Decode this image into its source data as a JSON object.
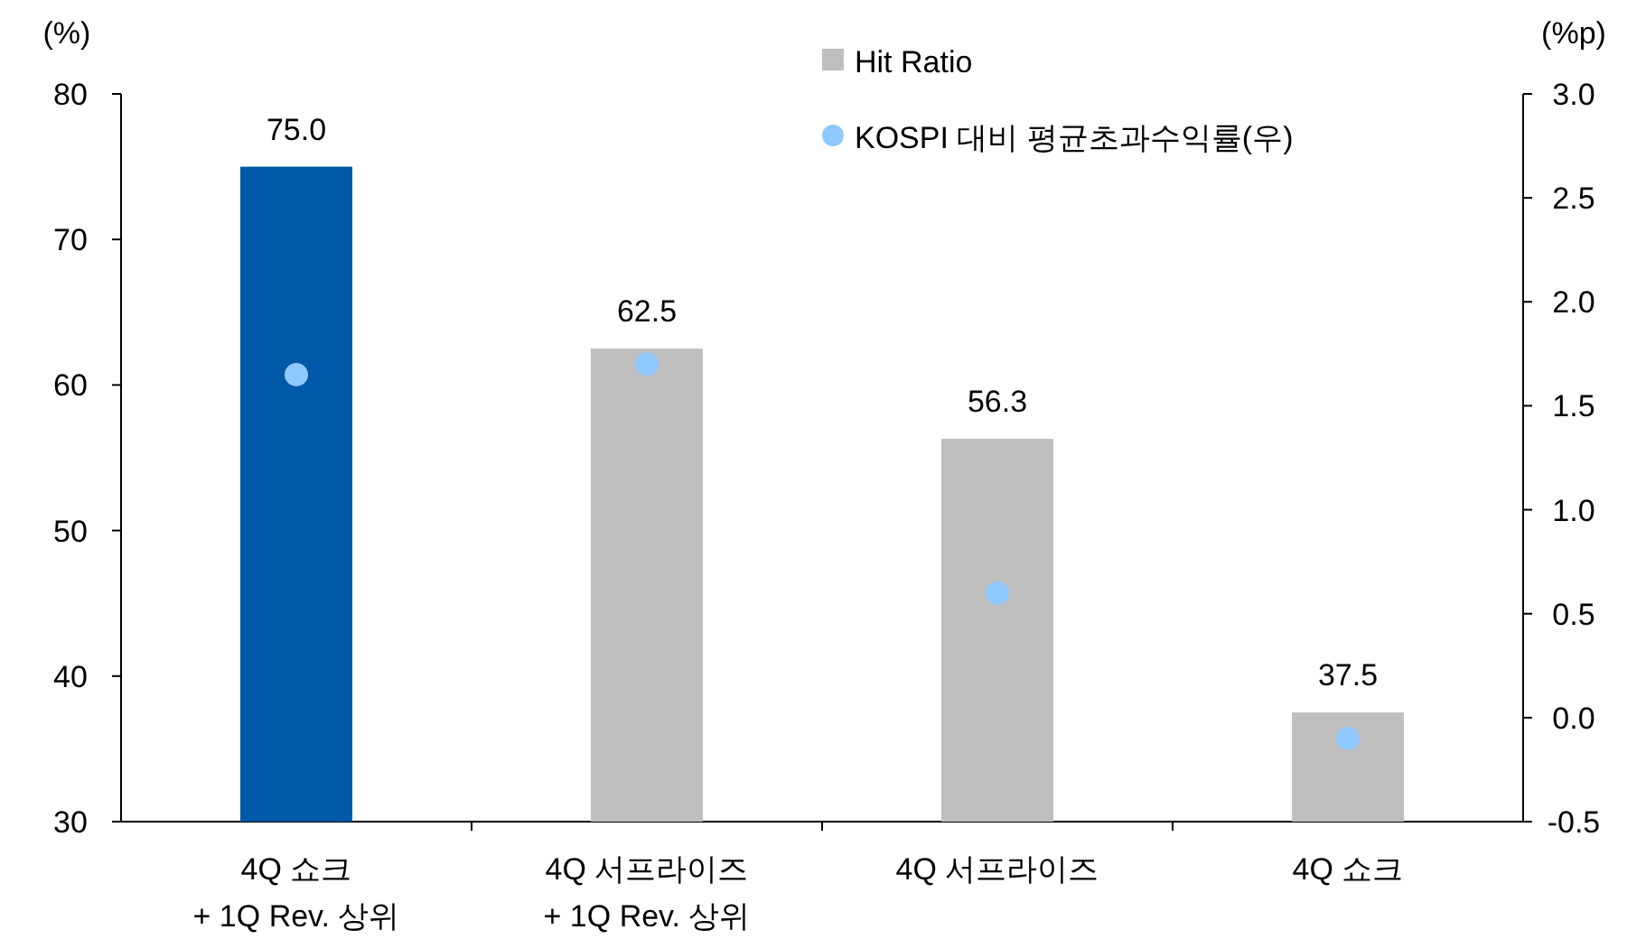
{
  "chart_data": {
    "type": "bar",
    "ylabel": "(%)",
    "y2label": "(%p)",
    "categories": [
      "4Q 쇼크\n+ 1Q Rev. 상위",
      "4Q 서프라이즈\n+ 1Q Rev. 상위",
      "4Q 서프라이즈",
      "4Q 쇼크"
    ],
    "series": [
      {
        "name": "Hit Ratio",
        "color": "#bfbfbf",
        "colors": [
          "#0058a8",
          "#bfbfbf",
          "#bfbfbf",
          "#bfbfbf"
        ],
        "values": [
          75.0,
          62.5,
          56.3,
          37.5
        ],
        "value_labels": [
          "75.0",
          "62.5",
          "56.3",
          "37.5"
        ]
      },
      {
        "name": "KOSPI 대비 평균초과수익률(우)",
        "type": "scatter",
        "axis": "y2",
        "color": "#8ec8ff",
        "marker": "circle",
        "values": [
          1.65,
          1.7,
          0.6,
          -0.1
        ]
      }
    ],
    "ylim": [
      30,
      80
    ],
    "yticks": [
      30,
      40,
      50,
      60,
      70,
      80
    ],
    "y2lim": [
      -0.5,
      3.0
    ],
    "y2ticks": [
      {
        "value": -0.5,
        "label": "-0.5"
      },
      {
        "value": 0,
        "label": "0.0"
      },
      {
        "value": 0.5,
        "label": "0.5"
      },
      {
        "value": 1,
        "label": "1.0"
      },
      {
        "value": 1.5,
        "label": "1.5"
      },
      {
        "value": 2,
        "label": "2.0"
      },
      {
        "value": 2.5,
        "label": "2.5"
      },
      {
        "value": 3,
        "label": "3.0"
      }
    ],
    "grid": false,
    "legend": "top"
  }
}
